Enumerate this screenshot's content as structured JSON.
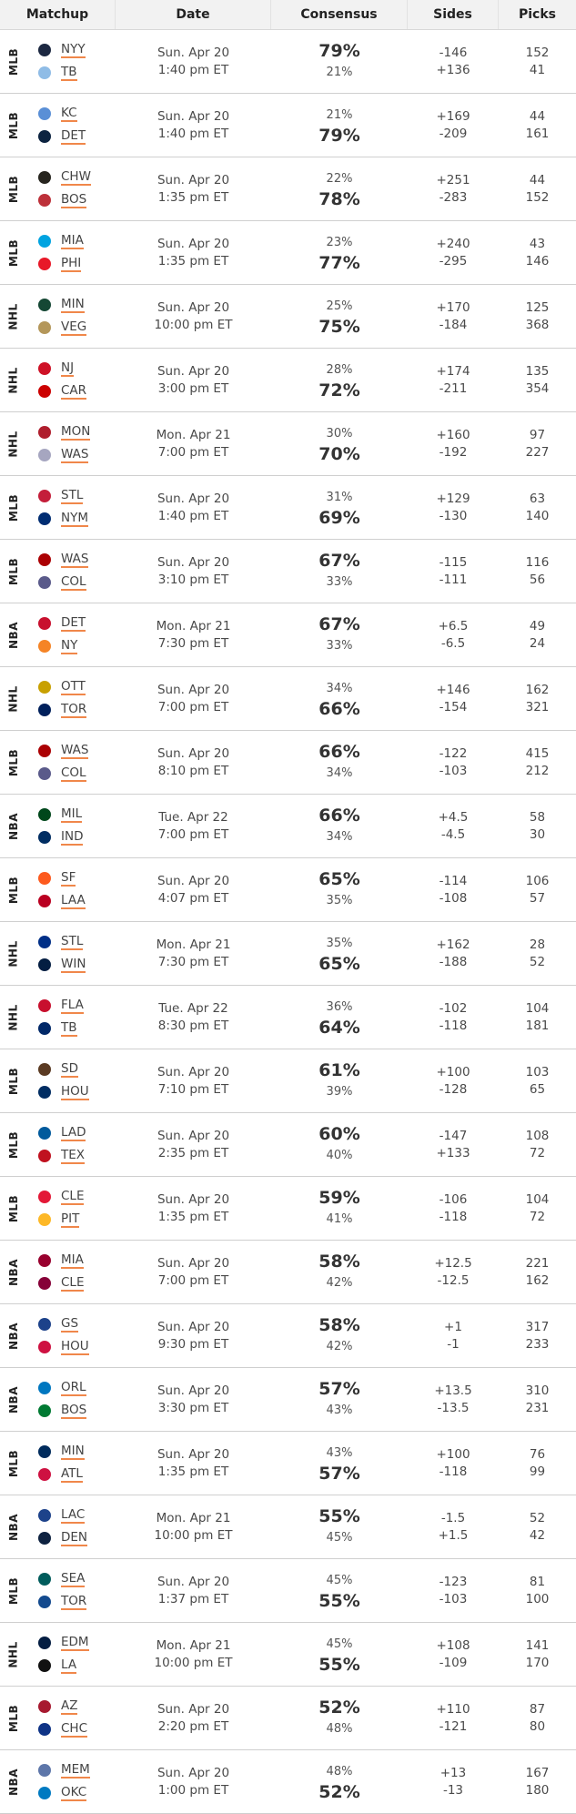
{
  "headers": {
    "matchup": "Matchup",
    "date": "Date",
    "consensus": "Consensus",
    "sides": "Sides",
    "picks": "Picks"
  },
  "rows": [
    {
      "league": "MLB",
      "teams": [
        {
          "abbr": "NYY",
          "color": "#1c2841"
        },
        {
          "abbr": "TB",
          "color": "#8fbce6"
        }
      ],
      "date": "Sun. Apr 20",
      "time": "1:40 pm ET",
      "pct": [
        "79%",
        "21%"
      ],
      "big": 0,
      "sides": [
        "-146",
        "+136"
      ],
      "picks": [
        "152",
        "41"
      ]
    },
    {
      "league": "MLB",
      "teams": [
        {
          "abbr": "KC",
          "color": "#5a8fd6"
        },
        {
          "abbr": "DET",
          "color": "#0c2340"
        }
      ],
      "date": "Sun. Apr 20",
      "time": "1:40 pm ET",
      "pct": [
        "21%",
        "79%"
      ],
      "big": 1,
      "sides": [
        "+169",
        "-209"
      ],
      "picks": [
        "44",
        "161"
      ]
    },
    {
      "league": "MLB",
      "teams": [
        {
          "abbr": "CHW",
          "color": "#27251f"
        },
        {
          "abbr": "BOS",
          "color": "#bd3039"
        }
      ],
      "date": "Sun. Apr 20",
      "time": "1:35 pm ET",
      "pct": [
        "22%",
        "78%"
      ],
      "big": 1,
      "sides": [
        "+251",
        "-283"
      ],
      "picks": [
        "44",
        "152"
      ]
    },
    {
      "league": "MLB",
      "teams": [
        {
          "abbr": "MIA",
          "color": "#00a3e0"
        },
        {
          "abbr": "PHI",
          "color": "#e81828"
        }
      ],
      "date": "Sun. Apr 20",
      "time": "1:35 pm ET",
      "pct": [
        "23%",
        "77%"
      ],
      "big": 1,
      "sides": [
        "+240",
        "-295"
      ],
      "picks": [
        "43",
        "146"
      ]
    },
    {
      "league": "NHL",
      "teams": [
        {
          "abbr": "MIN",
          "color": "#154734"
        },
        {
          "abbr": "VEG",
          "color": "#b4975a"
        }
      ],
      "date": "Sun. Apr 20",
      "time": "10:00 pm ET",
      "pct": [
        "25%",
        "75%"
      ],
      "big": 1,
      "sides": [
        "+170",
        "-184"
      ],
      "picks": [
        "125",
        "368"
      ]
    },
    {
      "league": "NHL",
      "teams": [
        {
          "abbr": "NJ",
          "color": "#ce1126"
        },
        {
          "abbr": "CAR",
          "color": "#cc0000"
        }
      ],
      "date": "Sun. Apr 20",
      "time": "3:00 pm ET",
      "pct": [
        "28%",
        "72%"
      ],
      "big": 1,
      "sides": [
        "+174",
        "-211"
      ],
      "picks": [
        "135",
        "354"
      ]
    },
    {
      "league": "NHL",
      "teams": [
        {
          "abbr": "MON",
          "color": "#af1e2d"
        },
        {
          "abbr": "WAS",
          "color": "#a6a6c0"
        }
      ],
      "date": "Mon. Apr 21",
      "time": "7:00 pm ET",
      "pct": [
        "30%",
        "70%"
      ],
      "big": 1,
      "sides": [
        "+160",
        "-192"
      ],
      "picks": [
        "97",
        "227"
      ]
    },
    {
      "league": "MLB",
      "teams": [
        {
          "abbr": "STL",
          "color": "#c41e3a"
        },
        {
          "abbr": "NYM",
          "color": "#002d72"
        }
      ],
      "date": "Sun. Apr 20",
      "time": "1:40 pm ET",
      "pct": [
        "31%",
        "69%"
      ],
      "big": 1,
      "sides": [
        "+129",
        "-130"
      ],
      "picks": [
        "63",
        "140"
      ]
    },
    {
      "league": "MLB",
      "teams": [
        {
          "abbr": "WAS",
          "color": "#ab0003"
        },
        {
          "abbr": "COL",
          "color": "#5a5a8a"
        }
      ],
      "date": "Sun. Apr 20",
      "time": "3:10 pm ET",
      "pct": [
        "67%",
        "33%"
      ],
      "big": 0,
      "sides": [
        "-115",
        "-111"
      ],
      "picks": [
        "116",
        "56"
      ]
    },
    {
      "league": "NBA",
      "teams": [
        {
          "abbr": "DET",
          "color": "#c8102e"
        },
        {
          "abbr": "NY",
          "color": "#f58426"
        }
      ],
      "date": "Mon. Apr 21",
      "time": "7:30 pm ET",
      "pct": [
        "67%",
        "33%"
      ],
      "big": 0,
      "sides": [
        "+6.5",
        "-6.5"
      ],
      "picks": [
        "49",
        "24"
      ]
    },
    {
      "league": "NHL",
      "teams": [
        {
          "abbr": "OTT",
          "color": "#c8a000"
        },
        {
          "abbr": "TOR",
          "color": "#00205b"
        }
      ],
      "date": "Sun. Apr 20",
      "time": "7:00 pm ET",
      "pct": [
        "34%",
        "66%"
      ],
      "big": 1,
      "sides": [
        "+146",
        "-154"
      ],
      "picks": [
        "162",
        "321"
      ]
    },
    {
      "league": "MLB",
      "teams": [
        {
          "abbr": "WAS",
          "color": "#ab0003"
        },
        {
          "abbr": "COL",
          "color": "#5a5a8a"
        }
      ],
      "date": "Sun. Apr 20",
      "time": "8:10 pm ET",
      "pct": [
        "66%",
        "34%"
      ],
      "big": 0,
      "sides": [
        "-122",
        "-103"
      ],
      "picks": [
        "415",
        "212"
      ]
    },
    {
      "league": "NBA",
      "teams": [
        {
          "abbr": "MIL",
          "color": "#00471b"
        },
        {
          "abbr": "IND",
          "color": "#002d62"
        }
      ],
      "date": "Tue. Apr 22",
      "time": "7:00 pm ET",
      "pct": [
        "66%",
        "34%"
      ],
      "big": 0,
      "sides": [
        "+4.5",
        "-4.5"
      ],
      "picks": [
        "58",
        "30"
      ]
    },
    {
      "league": "MLB",
      "teams": [
        {
          "abbr": "SF",
          "color": "#fd5a1e"
        },
        {
          "abbr": "LAA",
          "color": "#ba0021"
        }
      ],
      "date": "Sun. Apr 20",
      "time": "4:07 pm ET",
      "pct": [
        "65%",
        "35%"
      ],
      "big": 0,
      "sides": [
        "-114",
        "-108"
      ],
      "picks": [
        "106",
        "57"
      ]
    },
    {
      "league": "NHL",
      "teams": [
        {
          "abbr": "STL",
          "color": "#002f87"
        },
        {
          "abbr": "WIN",
          "color": "#041e42"
        }
      ],
      "date": "Mon. Apr 21",
      "time": "7:30 pm ET",
      "pct": [
        "35%",
        "65%"
      ],
      "big": 1,
      "sides": [
        "+162",
        "-188"
      ],
      "picks": [
        "28",
        "52"
      ]
    },
    {
      "league": "NHL",
      "teams": [
        {
          "abbr": "FLA",
          "color": "#c8102e"
        },
        {
          "abbr": "TB",
          "color": "#002868"
        }
      ],
      "date": "Tue. Apr 22",
      "time": "8:30 pm ET",
      "pct": [
        "36%",
        "64%"
      ],
      "big": 1,
      "sides": [
        "-102",
        "-118"
      ],
      "picks": [
        "104",
        "181"
      ]
    },
    {
      "league": "MLB",
      "teams": [
        {
          "abbr": "SD",
          "color": "#5a3a22"
        },
        {
          "abbr": "HOU",
          "color": "#002d62"
        }
      ],
      "date": "Sun. Apr 20",
      "time": "7:10 pm ET",
      "pct": [
        "61%",
        "39%"
      ],
      "big": 0,
      "sides": [
        "+100",
        "-128"
      ],
      "picks": [
        "103",
        "65"
      ]
    },
    {
      "league": "MLB",
      "teams": [
        {
          "abbr": "LAD",
          "color": "#005a9c"
        },
        {
          "abbr": "TEX",
          "color": "#c0111f"
        }
      ],
      "date": "Sun. Apr 20",
      "time": "2:35 pm ET",
      "pct": [
        "60%",
        "40%"
      ],
      "big": 0,
      "sides": [
        "-147",
        "+133"
      ],
      "picks": [
        "108",
        "72"
      ]
    },
    {
      "league": "MLB",
      "teams": [
        {
          "abbr": "CLE",
          "color": "#e31937"
        },
        {
          "abbr": "PIT",
          "color": "#fdb827"
        }
      ],
      "date": "Sun. Apr 20",
      "time": "1:35 pm ET",
      "pct": [
        "59%",
        "41%"
      ],
      "big": 0,
      "sides": [
        "-106",
        "-118"
      ],
      "picks": [
        "104",
        "72"
      ]
    },
    {
      "league": "NBA",
      "teams": [
        {
          "abbr": "MIA",
          "color": "#98002e"
        },
        {
          "abbr": "CLE",
          "color": "#860038"
        }
      ],
      "date": "Sun. Apr 20",
      "time": "7:00 pm ET",
      "pct": [
        "58%",
        "42%"
      ],
      "big": 0,
      "sides": [
        "+12.5",
        "-12.5"
      ],
      "picks": [
        "221",
        "162"
      ]
    },
    {
      "league": "NBA",
      "teams": [
        {
          "abbr": "GS",
          "color": "#1d428a"
        },
        {
          "abbr": "HOU",
          "color": "#ce1141"
        }
      ],
      "date": "Sun. Apr 20",
      "time": "9:30 pm ET",
      "pct": [
        "58%",
        "42%"
      ],
      "big": 0,
      "sides": [
        "+1",
        "-1"
      ],
      "picks": [
        "317",
        "233"
      ]
    },
    {
      "league": "NBA",
      "teams": [
        {
          "abbr": "ORL",
          "color": "#0077c0"
        },
        {
          "abbr": "BOS",
          "color": "#007a33"
        }
      ],
      "date": "Sun. Apr 20",
      "time": "3:30 pm ET",
      "pct": [
        "57%",
        "43%"
      ],
      "big": 0,
      "sides": [
        "+13.5",
        "-13.5"
      ],
      "picks": [
        "310",
        "231"
      ]
    },
    {
      "league": "MLB",
      "teams": [
        {
          "abbr": "MIN",
          "color": "#002b5c"
        },
        {
          "abbr": "ATL",
          "color": "#ce1141"
        }
      ],
      "date": "Sun. Apr 20",
      "time": "1:35 pm ET",
      "pct": [
        "43%",
        "57%"
      ],
      "big": 1,
      "sides": [
        "+100",
        "-118"
      ],
      "picks": [
        "76",
        "99"
      ]
    },
    {
      "league": "NBA",
      "teams": [
        {
          "abbr": "LAC",
          "color": "#1d428a"
        },
        {
          "abbr": "DEN",
          "color": "#0e2240"
        }
      ],
      "date": "Mon. Apr 21",
      "time": "10:00 pm ET",
      "pct": [
        "55%",
        "45%"
      ],
      "big": 0,
      "sides": [
        "-1.5",
        "+1.5"
      ],
      "picks": [
        "52",
        "42"
      ]
    },
    {
      "league": "MLB",
      "teams": [
        {
          "abbr": "SEA",
          "color": "#005c5c"
        },
        {
          "abbr": "TOR",
          "color": "#134a8e"
        }
      ],
      "date": "Sun. Apr 20",
      "time": "1:37 pm ET",
      "pct": [
        "45%",
        "55%"
      ],
      "big": 1,
      "sides": [
        "-123",
        "-103"
      ],
      "picks": [
        "81",
        "100"
      ]
    },
    {
      "league": "NHL",
      "teams": [
        {
          "abbr": "EDM",
          "color": "#041e42"
        },
        {
          "abbr": "LA",
          "color": "#111111"
        }
      ],
      "date": "Mon. Apr 21",
      "time": "10:00 pm ET",
      "pct": [
        "45%",
        "55%"
      ],
      "big": 1,
      "sides": [
        "+108",
        "-109"
      ],
      "picks": [
        "141",
        "170"
      ]
    },
    {
      "league": "MLB",
      "teams": [
        {
          "abbr": "AZ",
          "color": "#a71930"
        },
        {
          "abbr": "CHC",
          "color": "#0e3386"
        }
      ],
      "date": "Sun. Apr 20",
      "time": "2:20 pm ET",
      "pct": [
        "52%",
        "48%"
      ],
      "big": 0,
      "sides": [
        "+110",
        "-121"
      ],
      "picks": [
        "87",
        "80"
      ]
    },
    {
      "league": "NBA",
      "teams": [
        {
          "abbr": "MEM",
          "color": "#5d76a9"
        },
        {
          "abbr": "OKC",
          "color": "#007ac1"
        }
      ],
      "date": "Sun. Apr 20",
      "time": "1:00 pm ET",
      "pct": [
        "48%",
        "52%"
      ],
      "big": 1,
      "sides": [
        "+13",
        "-13"
      ],
      "picks": [
        "167",
        "180"
      ]
    }
  ]
}
